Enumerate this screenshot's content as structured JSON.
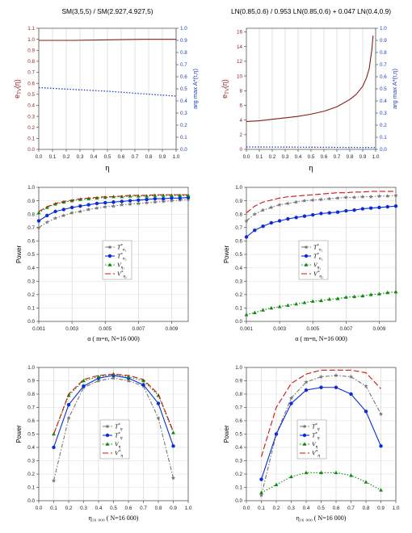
{
  "chart_data": [
    {
      "type": "line",
      "title": "SM(3,5,5) / SM(2.927,4.927,5)",
      "xlabel": "η",
      "ylabel": "e_TV(η)",
      "y2label": "arg max  A*(t,η)",
      "xlim": [
        0,
        1
      ],
      "ylim": [
        0,
        1.1
      ],
      "y2lim": [
        0,
        1.0
      ],
      "x_ticks": [
        "0.0",
        "0.1",
        "0.2",
        "0.3",
        "0.4",
        "0.5",
        "0.6",
        "0.7",
        "0.8",
        "0.9",
        "1.0"
      ],
      "y_ticks": [
        "0.0",
        "0.1",
        "0.2",
        "0.3",
        "0.4",
        "0.5",
        "0.6",
        "0.7",
        "0.8",
        "0.9",
        "1.0",
        "1.1"
      ],
      "y2_ticks": [
        "0.0",
        "0.1",
        "0.2",
        "0.3",
        "0.4",
        "0.5",
        "0.6",
        "0.7",
        "0.8",
        "0.9",
        "1.0"
      ],
      "grid": true,
      "series": [
        {
          "axis": "left",
          "color": "#8b1a1a",
          "style": "solid",
          "x": [
            0,
            0.25,
            0.5,
            0.75,
            1.0
          ],
          "values": [
            0.99,
            0.99,
            0.995,
            1.0,
            1.0
          ]
        },
        {
          "axis": "right",
          "color": "#1f3bbf",
          "style": "dotted",
          "x": [
            0,
            0.25,
            0.5,
            0.75,
            1.0
          ],
          "values": [
            0.51,
            0.495,
            0.48,
            0.46,
            0.44
          ]
        }
      ]
    },
    {
      "type": "line",
      "title": "LN(0.85,0.6) / 0.953 LN(0.85,0.6) + 0.047 LN(0.4,0.9)",
      "xlabel": "η",
      "ylabel": "e_TV(η)",
      "y2label": "arg max  A*(t,η)",
      "xlim": [
        0,
        1
      ],
      "ylim": [
        0,
        16.5
      ],
      "y2lim": [
        0,
        1.0
      ],
      "x_ticks": [
        "0.0",
        "0.1",
        "0.2",
        "0.3",
        "0.4",
        "0.5",
        "0.6",
        "0.7",
        "0.8",
        "0.9",
        "1.0"
      ],
      "y_ticks": [
        "0",
        "2",
        "4",
        "6",
        "8",
        "10",
        "12",
        "14",
        "16"
      ],
      "y2_ticks": [
        "0.0",
        "0.1",
        "0.2",
        "0.3",
        "0.4",
        "0.5",
        "0.6",
        "0.7",
        "0.8",
        "0.9",
        "1.0"
      ],
      "grid": true,
      "series": [
        {
          "axis": "left",
          "color": "#8b1a1a",
          "style": "solid",
          "x": [
            0,
            0.1,
            0.2,
            0.3,
            0.4,
            0.5,
            0.6,
            0.7,
            0.8,
            0.85,
            0.9,
            0.93,
            0.95,
            0.97,
            0.98
          ],
          "values": [
            3.8,
            3.9,
            4.1,
            4.3,
            4.5,
            4.8,
            5.2,
            5.8,
            6.8,
            7.5,
            8.6,
            9.8,
            11.0,
            13.5,
            15.5
          ]
        },
        {
          "axis": "right",
          "color": "#1f3bbf",
          "style": "dotted",
          "x": [
            0,
            0.5,
            1.0
          ],
          "values": [
            0.02,
            0.018,
            0.015
          ]
        }
      ]
    },
    {
      "type": "line",
      "title": "",
      "xlabel": "α  ( m=n,  N=16 000)",
      "ylabel": "Power",
      "xlim": [
        0.001,
        0.01
      ],
      "ylim": [
        0,
        1.0
      ],
      "x_ticks": [
        "0.001",
        "0.003",
        "0.005",
        "0.007",
        "0.009"
      ],
      "y_ticks": [
        "0.0",
        "0.1",
        "0.2",
        "0.3",
        "0.4",
        "0.5",
        "0.6",
        "0.7",
        "0.8",
        "0.9",
        "1.0"
      ],
      "grid": true,
      "legend": "center-left",
      "x": [
        0.001,
        0.0015,
        0.002,
        0.0025,
        0.003,
        0.0035,
        0.004,
        0.0045,
        0.005,
        0.0055,
        0.006,
        0.0065,
        0.007,
        0.0075,
        0.008,
        0.0085,
        0.009,
        0.0095,
        0.01
      ],
      "series": [
        {
          "name": "T*_n₁",
          "color": "#777777",
          "style": "dashdot",
          "marker": "star",
          "values": [
            0.7,
            0.74,
            0.77,
            0.79,
            0.81,
            0.82,
            0.835,
            0.845,
            0.855,
            0.86,
            0.87,
            0.875,
            0.88,
            0.885,
            0.89,
            0.895,
            0.9,
            0.905,
            0.91
          ]
        },
        {
          "name": "T*_n₂",
          "color": "#0a2adb",
          "style": "solid",
          "marker": "dot",
          "values": [
            0.75,
            0.79,
            0.82,
            0.835,
            0.85,
            0.86,
            0.87,
            0.88,
            0.885,
            0.89,
            0.895,
            0.9,
            0.905,
            0.91,
            0.915,
            0.915,
            0.92,
            0.92,
            0.925
          ]
        },
        {
          "name": "V_η₁",
          "color": "#0f8a0f",
          "style": "dotted",
          "marker": "triangle",
          "values": [
            0.81,
            0.85,
            0.875,
            0.89,
            0.9,
            0.91,
            0.915,
            0.92,
            0.925,
            0.93,
            0.93,
            0.935,
            0.935,
            0.935,
            0.94,
            0.94,
            0.94,
            0.94,
            0.94
          ]
        },
        {
          "name": "V*_η₂",
          "color": "#d01010",
          "style": "dashed",
          "marker": "none",
          "values": [
            0.82,
            0.855,
            0.88,
            0.895,
            0.905,
            0.915,
            0.92,
            0.925,
            0.93,
            0.93,
            0.935,
            0.94,
            0.94,
            0.94,
            0.945,
            0.945,
            0.945,
            0.945,
            0.945
          ]
        }
      ]
    },
    {
      "type": "line",
      "title": "",
      "xlabel": "α  ( m=n,  N=16 000)",
      "ylabel": "Power",
      "xlim": [
        0.001,
        0.01
      ],
      "ylim": [
        0,
        1.0
      ],
      "x_ticks": [
        "0.001",
        "0.003",
        "0.005",
        "0.007",
        "0.009"
      ],
      "y_ticks": [
        "0.0",
        "0.1",
        "0.2",
        "0.3",
        "0.4",
        "0.5",
        "0.6",
        "0.7",
        "0.8",
        "0.9",
        "1.0"
      ],
      "grid": true,
      "legend": "center-left",
      "x": [
        0.001,
        0.0015,
        0.002,
        0.0025,
        0.003,
        0.0035,
        0.004,
        0.0045,
        0.005,
        0.0055,
        0.006,
        0.0065,
        0.007,
        0.0075,
        0.008,
        0.0085,
        0.009,
        0.0095,
        0.01
      ],
      "series": [
        {
          "name": "T*_n₁",
          "color": "#777777",
          "style": "dashdot",
          "marker": "star",
          "values": [
            0.75,
            0.8,
            0.83,
            0.85,
            0.87,
            0.88,
            0.89,
            0.9,
            0.905,
            0.91,
            0.915,
            0.92,
            0.925,
            0.925,
            0.93,
            0.93,
            0.935,
            0.935,
            0.94
          ]
        },
        {
          "name": "T*_n₂",
          "color": "#0a2adb",
          "style": "solid",
          "marker": "dot",
          "values": [
            0.63,
            0.68,
            0.71,
            0.735,
            0.75,
            0.765,
            0.775,
            0.785,
            0.795,
            0.805,
            0.81,
            0.815,
            0.825,
            0.83,
            0.84,
            0.845,
            0.85,
            0.855,
            0.86
          ]
        },
        {
          "name": "V_η₁",
          "color": "#0f8a0f",
          "style": "dotted",
          "marker": "triangle",
          "values": [
            0.05,
            0.065,
            0.085,
            0.1,
            0.11,
            0.12,
            0.13,
            0.14,
            0.15,
            0.155,
            0.165,
            0.17,
            0.18,
            0.185,
            0.19,
            0.2,
            0.205,
            0.215,
            0.22
          ]
        },
        {
          "name": "V*_η₂",
          "color": "#d01010",
          "style": "dashed",
          "marker": "none",
          "values": [
            0.81,
            0.86,
            0.89,
            0.905,
            0.92,
            0.93,
            0.935,
            0.94,
            0.945,
            0.95,
            0.955,
            0.96,
            0.96,
            0.965,
            0.965,
            0.97,
            0.97,
            0.97,
            0.97
          ]
        }
      ]
    },
    {
      "type": "line",
      "title": "",
      "xlabel": "η₁₆ ₀₀₀  ( N=16 000)",
      "ylabel": "Power",
      "xlim": [
        0,
        1.0
      ],
      "ylim": [
        0,
        1.0
      ],
      "x_ticks": [
        "0.0",
        "0.1",
        "0.2",
        "0.3",
        "0.4",
        "0.5",
        "0.6",
        "0.7",
        "0.8",
        "0.9",
        "1.0"
      ],
      "y_ticks": [
        "0.0",
        "0.1",
        "0.2",
        "0.3",
        "0.4",
        "0.5",
        "0.6",
        "0.7",
        "0.8",
        "0.9",
        "1.0"
      ],
      "grid": true,
      "legend": "center",
      "x": [
        0.1,
        0.2,
        0.3,
        0.4,
        0.5,
        0.6,
        0.7,
        0.8,
        0.9
      ],
      "series": [
        {
          "name": "T*_η",
          "color": "#777777",
          "style": "dashdot",
          "marker": "star",
          "values": [
            0.15,
            0.62,
            0.85,
            0.9,
            0.92,
            0.9,
            0.86,
            0.62,
            0.17
          ]
        },
        {
          "name": "T*_η",
          "color": "#0a2adb",
          "style": "solid",
          "marker": "dot",
          "values": [
            0.4,
            0.72,
            0.86,
            0.92,
            0.94,
            0.92,
            0.87,
            0.73,
            0.41
          ]
        },
        {
          "name": "V_η",
          "color": "#0f8a0f",
          "style": "dotted",
          "marker": "triangle",
          "values": [
            0.5,
            0.79,
            0.9,
            0.93,
            0.95,
            0.93,
            0.9,
            0.79,
            0.51
          ]
        },
        {
          "name": "V*_η",
          "color": "#d01010",
          "style": "dashed",
          "marker": "none",
          "values": [
            0.5,
            0.8,
            0.91,
            0.94,
            0.95,
            0.94,
            0.91,
            0.8,
            0.52
          ]
        }
      ]
    },
    {
      "type": "line",
      "title": "",
      "xlabel": "η₁₆ ₀₀₀  ( N=16 000)",
      "ylabel": "Power",
      "xlim": [
        0,
        1.0
      ],
      "ylim": [
        0,
        1.0
      ],
      "x_ticks": [
        "0.0",
        "0.1",
        "0.2",
        "0.3",
        "0.4",
        "0.5",
        "0.6",
        "0.7",
        "0.8",
        "0.9",
        "1.0"
      ],
      "y_ticks": [
        "0.0",
        "0.1",
        "0.2",
        "0.3",
        "0.4",
        "0.5",
        "0.6",
        "0.7",
        "0.8",
        "0.9",
        "1.0"
      ],
      "grid": true,
      "legend": "center-right",
      "x": [
        0.1,
        0.2,
        0.3,
        0.4,
        0.5,
        0.6,
        0.7,
        0.8,
        0.9
      ],
      "series": [
        {
          "name": "T*_η",
          "color": "#777777",
          "style": "dashdot",
          "marker": "star",
          "values": [
            0.04,
            0.5,
            0.77,
            0.89,
            0.93,
            0.94,
            0.93,
            0.86,
            0.65
          ]
        },
        {
          "name": "T*_η",
          "color": "#0a2adb",
          "style": "solid",
          "marker": "dot",
          "values": [
            0.16,
            0.5,
            0.73,
            0.83,
            0.85,
            0.85,
            0.8,
            0.67,
            0.41
          ]
        },
        {
          "name": "V_η",
          "color": "#0f8a0f",
          "style": "dotted",
          "marker": "triangle",
          "values": [
            0.06,
            0.12,
            0.18,
            0.21,
            0.21,
            0.21,
            0.19,
            0.14,
            0.08
          ]
        },
        {
          "name": "V*_η",
          "color": "#d01010",
          "style": "dashed",
          "marker": "none",
          "values": [
            0.33,
            0.7,
            0.88,
            0.95,
            0.98,
            0.98,
            0.98,
            0.96,
            0.84
          ]
        }
      ]
    }
  ]
}
